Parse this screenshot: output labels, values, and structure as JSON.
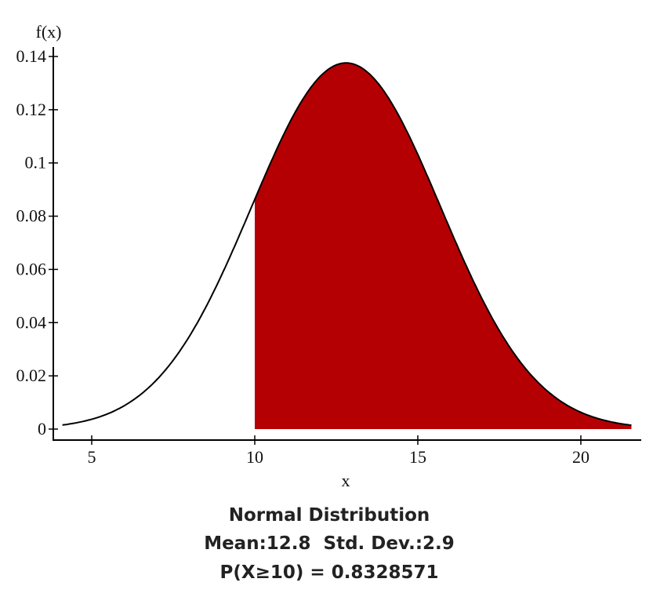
{
  "chart_data": {
    "type": "area",
    "distribution": "normal",
    "mean": 12.8,
    "std_dev": 2.9,
    "x_range": [
      4.1,
      21.55
    ],
    "shaded_from": 10,
    "xlabel": "x",
    "ylabel": "f(x)",
    "xlim": [
      3.82,
      21.85
    ],
    "ylim": [
      0,
      0.14
    ],
    "xticks": [
      "5",
      "10",
      "15",
      "20"
    ],
    "xtick_values": [
      5,
      10,
      15,
      20
    ],
    "yticks": [
      "0",
      "0.02",
      "0.04",
      "0.06",
      "0.08",
      "0.1",
      "0.12",
      "0.14"
    ],
    "ytick_values": [
      0,
      0.02,
      0.04,
      0.06,
      0.08,
      0.1,
      0.12,
      0.14
    ],
    "grid": false,
    "fill_color": "#b50003",
    "line_color": "#000000",
    "caption": {
      "title": "Normal Distribution",
      "params": "Mean:12.8  Std. Dev.:2.9",
      "probability": "P(X≥10) = 0.8328571"
    }
  }
}
